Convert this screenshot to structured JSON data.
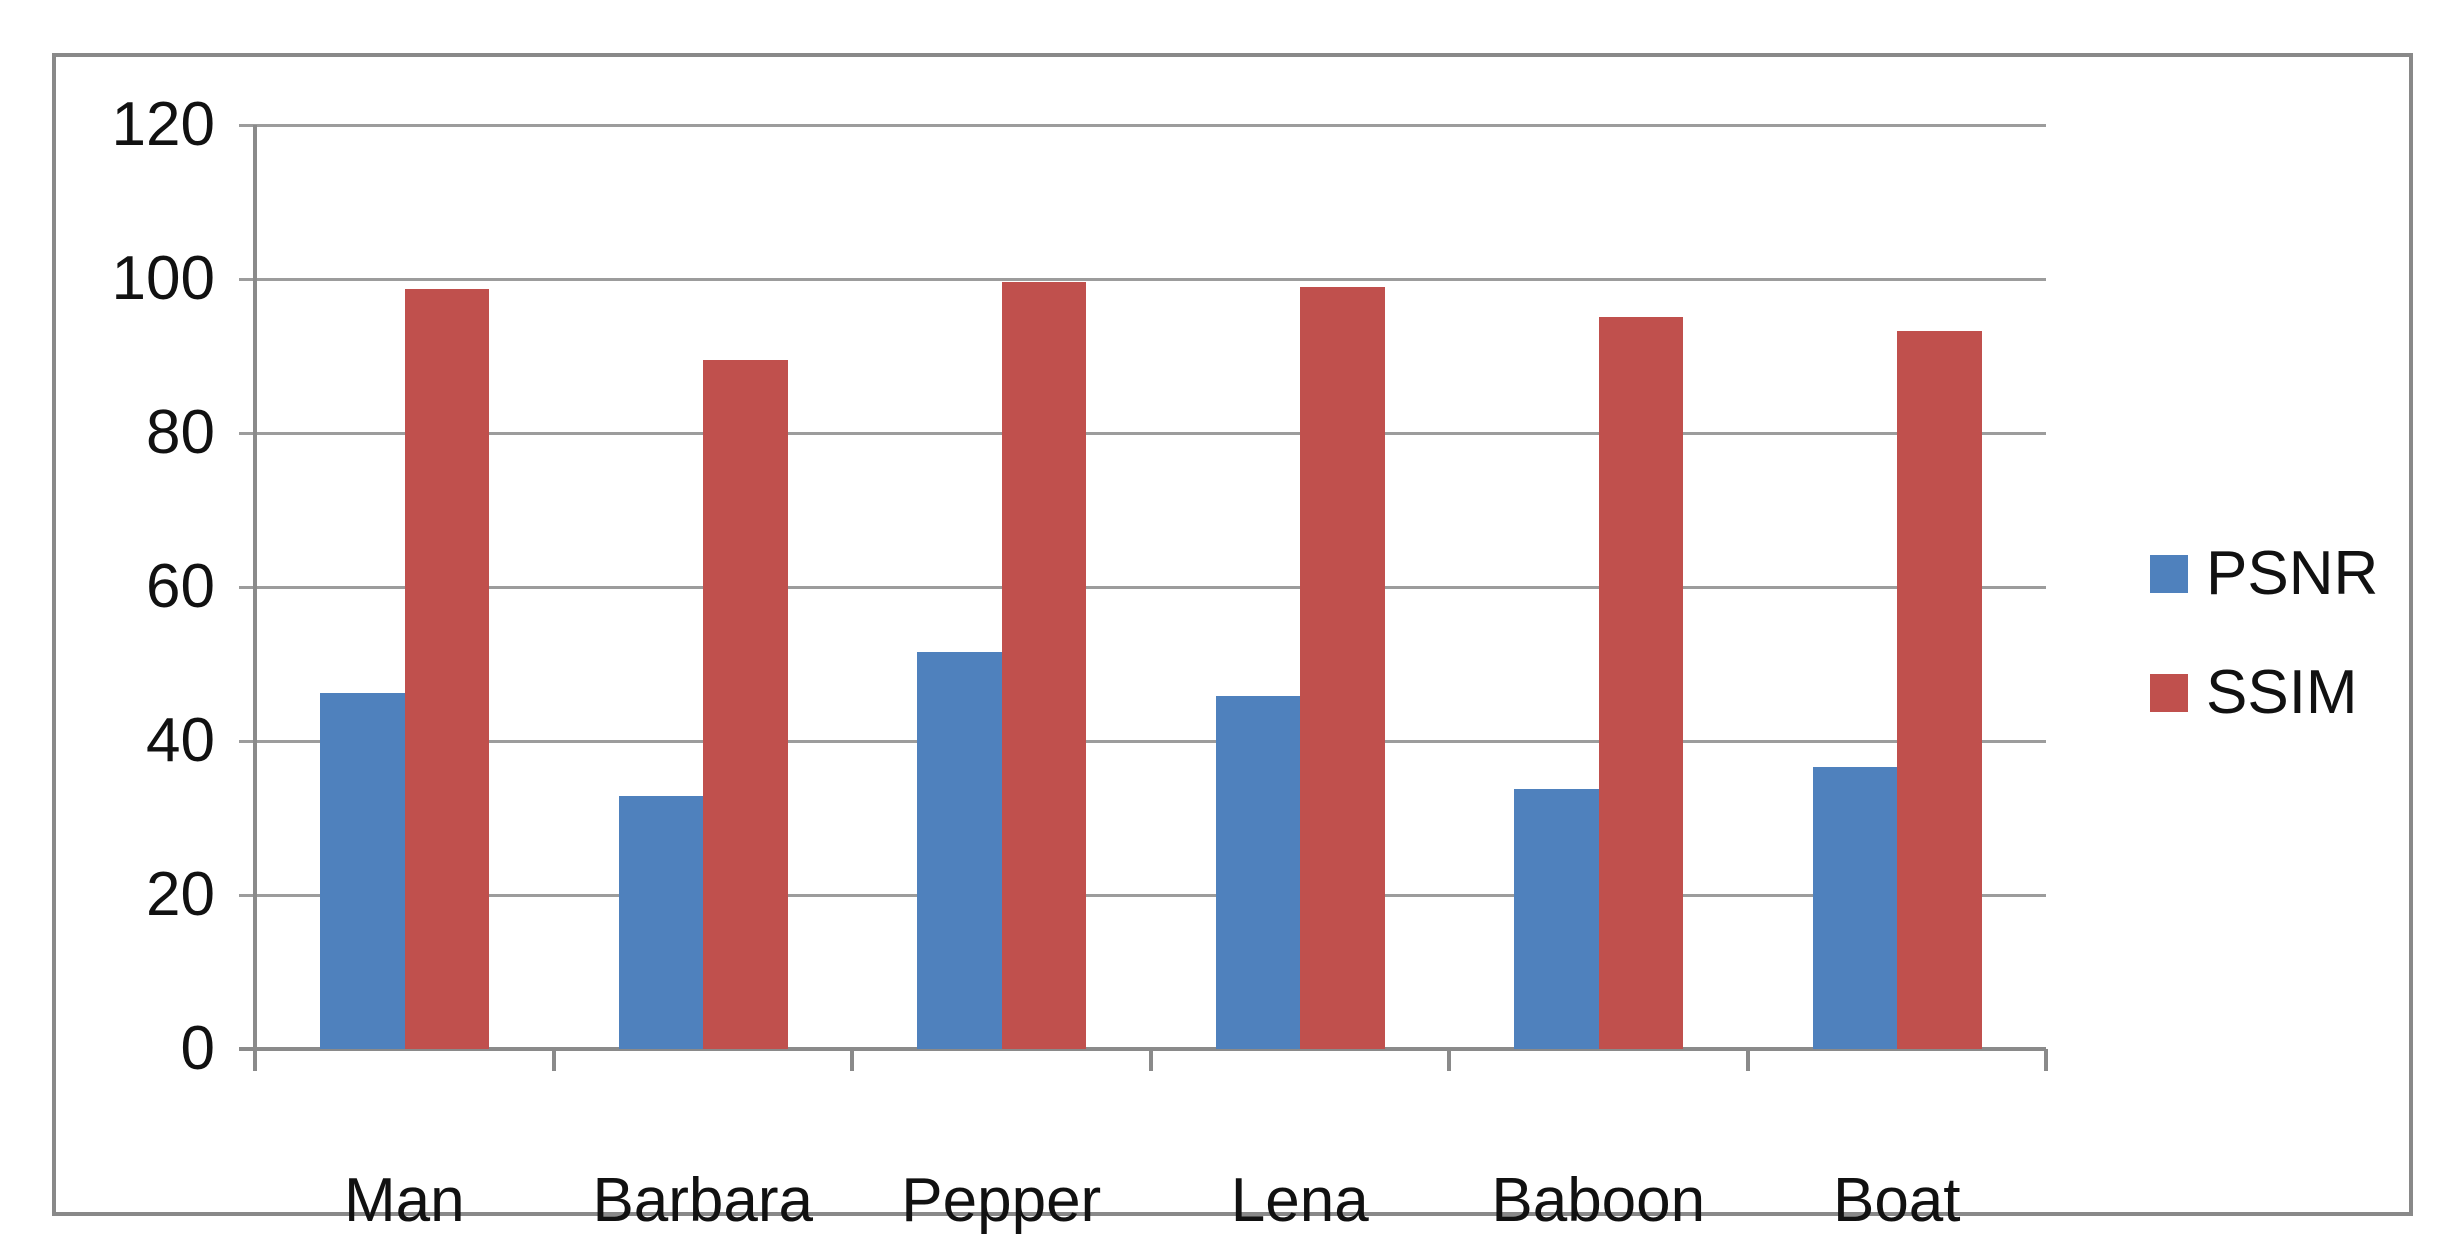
{
  "chart_data": {
    "type": "bar",
    "title": "",
    "xlabel": "",
    "ylabel": "",
    "categories": [
      "Man",
      "Barbara",
      "Pepper",
      "Lena",
      "Baboon",
      "Boat"
    ],
    "series": [
      {
        "name": "PSNR",
        "color": "#4F81BD",
        "values": [
          46.3,
          32.9,
          51.5,
          45.8,
          33.8,
          36.6
        ]
      },
      {
        "name": "SSIM",
        "color": "#C0504D",
        "values": [
          98.7,
          89.5,
          99.6,
          99.0,
          95.1,
          93.3
        ]
      }
    ],
    "ylim": [
      0,
      120
    ],
    "ytick_step": 20,
    "ytick_labels": [
      "0",
      "20",
      "40",
      "60",
      "80",
      "100",
      "120"
    ],
    "grid": "horizontal",
    "legend_position": "right",
    "colors": {
      "gridline": "#9C9C9C",
      "axis": "#8A8A8A",
      "frame_border": "#898989",
      "text": "#111111",
      "background": "#FFFFFF"
    }
  }
}
